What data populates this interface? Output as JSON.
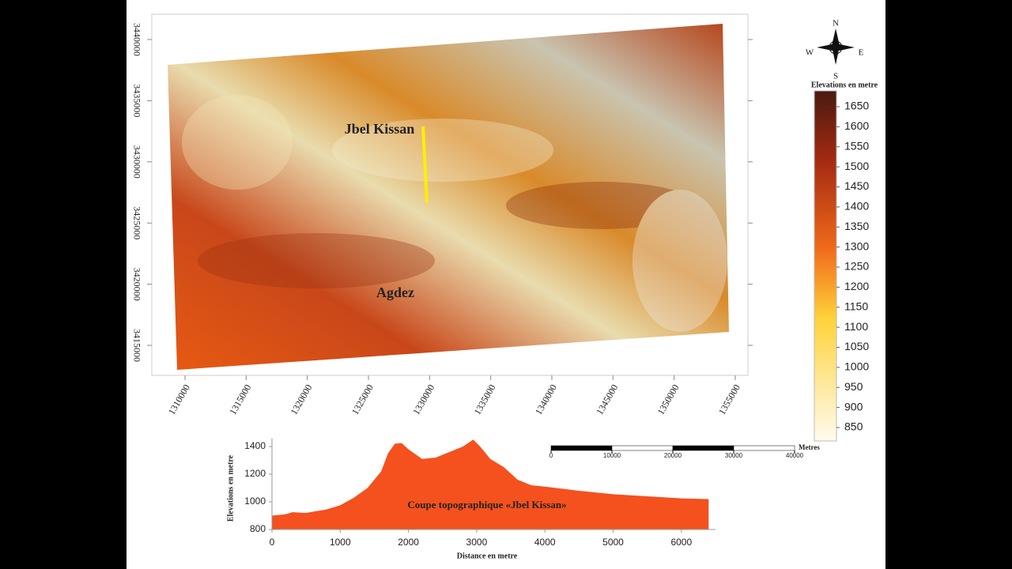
{
  "map": {
    "xticks": [
      1310000,
      1315000,
      1320000,
      1325000,
      1330000,
      1335000,
      1340000,
      1345000,
      1350000,
      1355000
    ],
    "yticks": [
      3415000,
      3420000,
      3425000,
      3430000,
      3435000,
      3440000
    ],
    "places": [
      {
        "label": "Jbel Kissan",
        "color": "#e31a1c"
      },
      {
        "label": "Agdez",
        "color": "#ffe21a"
      }
    ],
    "compass": {
      "n": "N",
      "s": "S",
      "e": "E",
      "w": "W"
    },
    "legend": {
      "title": "Elevations en metre",
      "ticks": [
        850,
        900,
        950,
        1000,
        1050,
        1100,
        1150,
        1200,
        1250,
        1300,
        1350,
        1400,
        1450,
        1500,
        1550,
        1600,
        1650
      ]
    },
    "scale_bar": {
      "unit": "Metres",
      "ticks": [
        0,
        10000,
        20000,
        30000,
        40000
      ]
    }
  },
  "chart_data": {
    "type": "area",
    "color": "#f4511e",
    "annotation": "Coupe topographique «Jbel Kissan»",
    "x_label": "Distance en metre",
    "y_label": "Elevations en metre",
    "x": [
      0,
      200,
      300,
      500,
      800,
      1000,
      1200,
      1400,
      1500,
      1600,
      1700,
      1800,
      1900,
      2000,
      2200,
      2400,
      2600,
      2800,
      2950,
      3050,
      3200,
      3400,
      3600,
      3800,
      4000,
      4500,
      5000,
      5500,
      6000,
      6400
    ],
    "values": [
      900,
      910,
      925,
      920,
      945,
      975,
      1030,
      1100,
      1160,
      1220,
      1350,
      1420,
      1425,
      1380,
      1310,
      1320,
      1360,
      1400,
      1450,
      1400,
      1310,
      1250,
      1160,
      1120,
      1110,
      1080,
      1055,
      1040,
      1025,
      1020
    ],
    "xlim": [
      0,
      6500
    ],
    "ylim": [
      800,
      1460
    ],
    "xticks": [
      0,
      1000,
      2000,
      3000,
      4000,
      5000,
      6000
    ],
    "yticks": [
      800,
      1000,
      1200,
      1400
    ]
  }
}
